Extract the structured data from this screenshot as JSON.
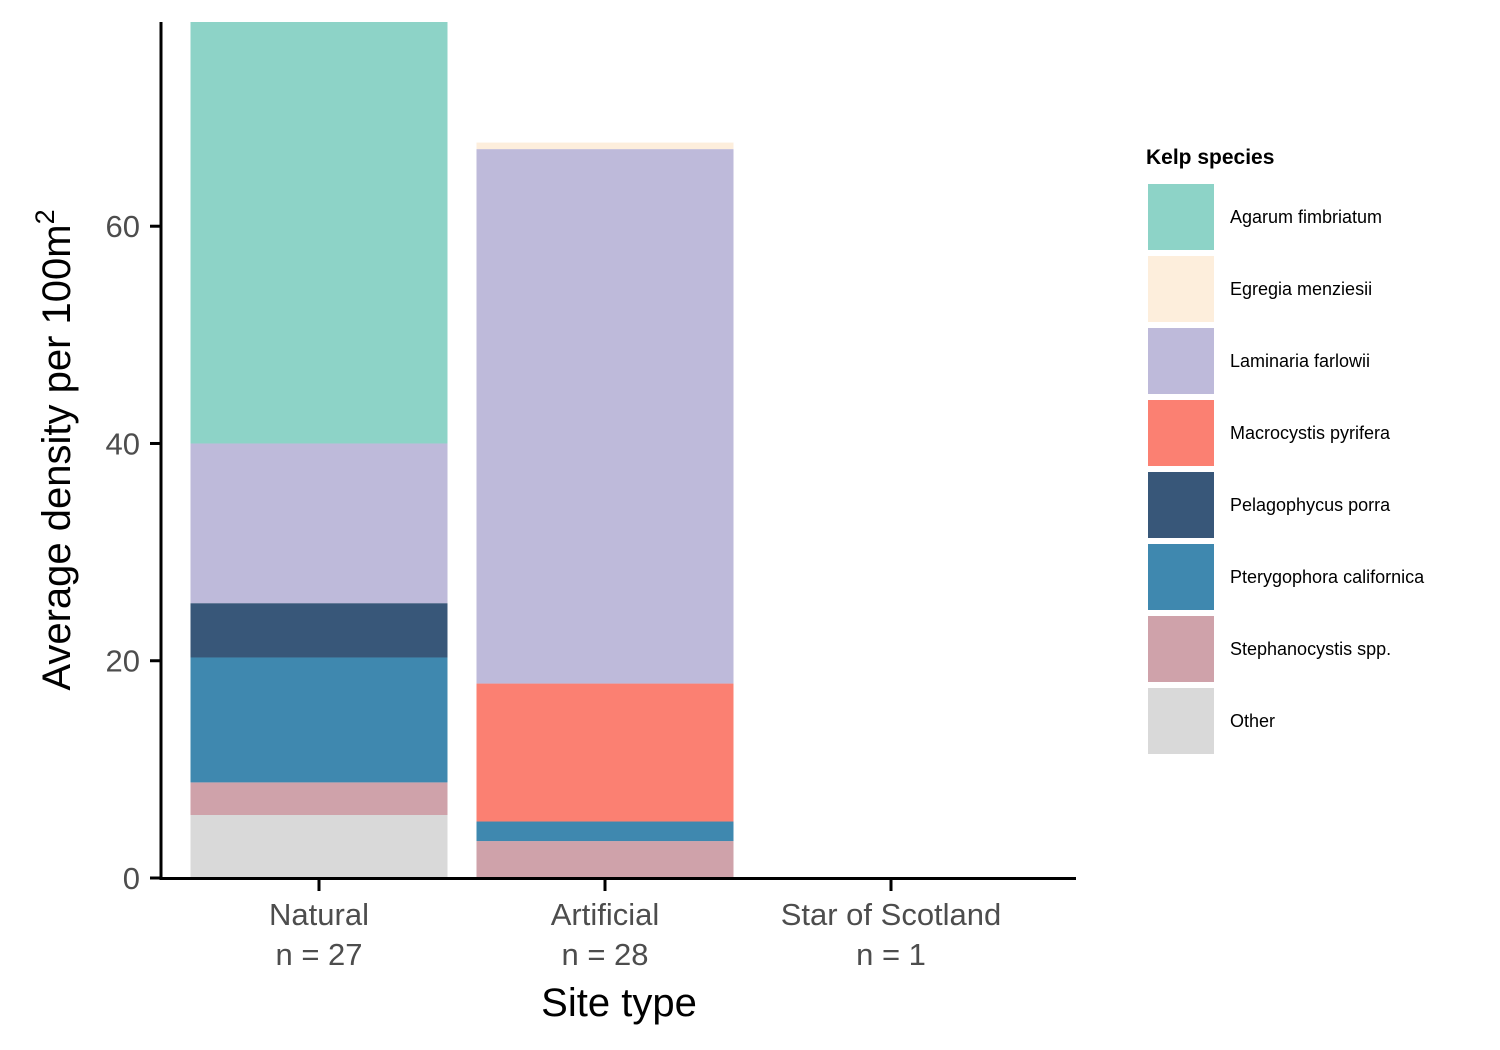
{
  "chart_data": {
    "type": "bar",
    "stacked": true,
    "categories": [
      "Natural",
      "Artificial",
      "Star of Scotland"
    ],
    "category_counts": [
      "n = 27",
      "n = 28",
      "n = 1"
    ],
    "xlabel": "Site type",
    "ylabel": "Average density per 100m",
    "ylabel_superscript": "2",
    "yticks": [
      0,
      20,
      40,
      60
    ],
    "ylim": [
      0,
      78.8
    ],
    "grid": false,
    "legend": {
      "title": "Kelp species",
      "position": "right"
    },
    "series": [
      {
        "name": "Agarum fimbriatum",
        "color": "#8DD3C7",
        "values": [
          38.8,
          0,
          0
        ]
      },
      {
        "name": "Egregia menziesii",
        "color": "#FDEEDC",
        "values": [
          0,
          0.6,
          0
        ]
      },
      {
        "name": "Laminaria farlowii",
        "color": "#BEBADA",
        "values": [
          14.7,
          49.2,
          0
        ]
      },
      {
        "name": "Macrocystis pyrifera",
        "color": "#FB8072",
        "values": [
          0,
          12.7,
          0
        ]
      },
      {
        "name": "Pelagophycus porra",
        "color": "#385779",
        "values": [
          5.0,
          0,
          0
        ]
      },
      {
        "name": "Pterygophora californica",
        "color": "#3F88AF",
        "values": [
          11.5,
          1.8,
          0
        ]
      },
      {
        "name": "Stephanocystis spp.",
        "color": "#CFA2AA",
        "values": [
          3.0,
          3.4,
          0
        ]
      },
      {
        "name": "Other",
        "color": "#D9D9D9",
        "values": [
          5.8,
          0,
          0
        ]
      }
    ]
  }
}
